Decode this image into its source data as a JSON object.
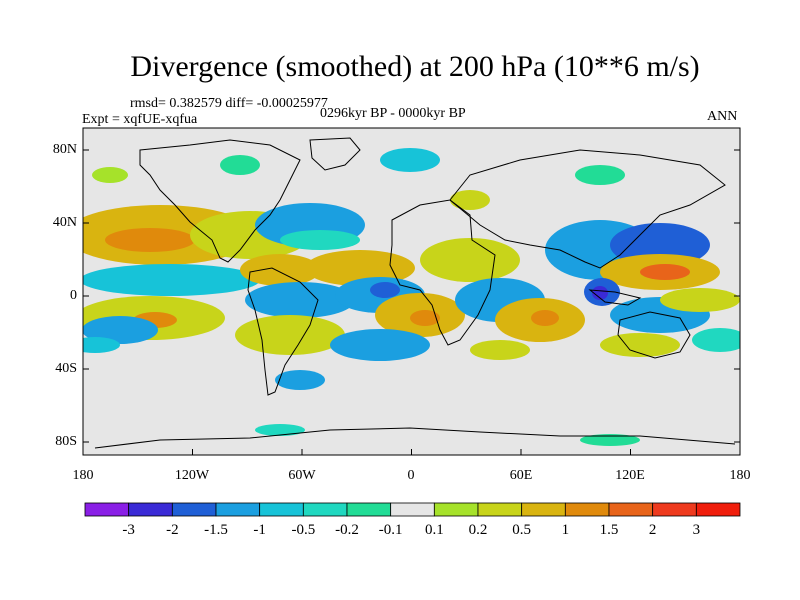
{
  "title": "Divergence (smoothed) at 200 hPa (10**6 m/s)",
  "stats": "rmsd= 0.382579 diff= -0.00025977",
  "experiment": "Expt = xqfUE-xqfua",
  "period": "0296kyr BP - 0000kyr BP",
  "season": "ANN",
  "lat_labels": [
    "80N",
    "40N",
    "0",
    "40S",
    "80S"
  ],
  "lon_labels": [
    "180",
    "120W",
    "60W",
    "0",
    "60E",
    "120E",
    "180"
  ],
  "colorbar": {
    "labels": [
      "-3",
      "-2",
      "-1.5",
      "-1",
      "-0.5",
      "-0.2",
      "-0.1",
      "0.1",
      "0.2",
      "0.5",
      "1",
      "1.5",
      "2",
      "3"
    ],
    "colors": [
      "#8a1fe6",
      "#3a2ad6",
      "#1f5fd6",
      "#1b9fe0",
      "#17c3d8",
      "#20d8c0",
      "#22dc96",
      "#e6e6e6",
      "#a6e22a",
      "#c8d41a",
      "#d9b410",
      "#e08a0c",
      "#e8641a",
      "#ee3a1e",
      "#f01e0c"
    ]
  },
  "map": {
    "land_color": "#e6e6e6",
    "ocean_color": "#e6e6e6",
    "coast_color": "#000000"
  }
}
